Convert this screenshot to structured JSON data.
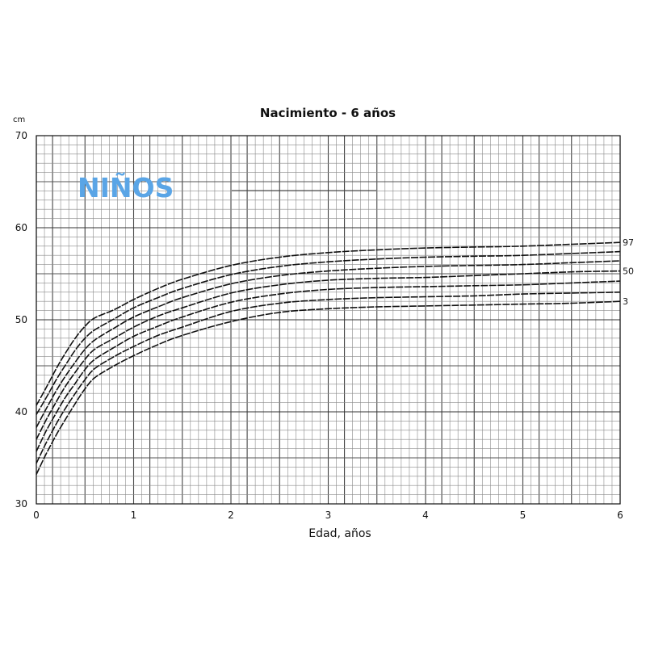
{
  "chart_data": {
    "type": "line",
    "title": "Nacimiento - 6 años",
    "subtitle": "NIÑOS",
    "xlabel": "Edad, años",
    "ylabel": "cm",
    "xlim": [
      0,
      6
    ],
    "ylim": [
      30,
      70
    ],
    "x_ticks": [
      "0",
      "1",
      "2",
      "3",
      "4",
      "5",
      "6"
    ],
    "y_ticks": [
      "30",
      "40",
      "50",
      "60",
      "70"
    ],
    "grid": true,
    "colors": {
      "accent": "#5aa5e6",
      "line": "#111111",
      "grid": "#777777"
    },
    "x": [
      0,
      0.1,
      0.2,
      0.3,
      0.4,
      0.5,
      0.6,
      0.8,
      1,
      1.25,
      1.5,
      2,
      2.5,
      3,
      3.5,
      4,
      4.5,
      5,
      5.5,
      6
    ],
    "series": [
      {
        "name": "97",
        "values": [
          40.7,
          42.6,
          44.6,
          46.4,
          48,
          49.3,
          50.2,
          51.1,
          52.2,
          53.4,
          54.4,
          55.9,
          56.8,
          57.3,
          57.6,
          57.8,
          57.9,
          58,
          58.2,
          58.4
        ]
      },
      {
        "name": "",
        "values": [
          39.7,
          41.5,
          43.4,
          45.1,
          46.7,
          48,
          48.9,
          50.1,
          51.3,
          52.4,
          53.4,
          54.9,
          55.8,
          56.3,
          56.6,
          56.8,
          56.9,
          57,
          57.2,
          57.4
        ]
      },
      {
        "name": "",
        "values": [
          38.3,
          40.3,
          42.2,
          43.9,
          45.4,
          46.8,
          47.8,
          49.1,
          50.3,
          51.4,
          52.4,
          53.9,
          54.8,
          55.3,
          55.6,
          55.8,
          55.9,
          56,
          56.2,
          56.4
        ]
      },
      {
        "name": "50",
        "values": [
          37,
          39.1,
          41,
          42.8,
          44.3,
          45.7,
          46.8,
          48,
          49.2,
          50.4,
          51.3,
          52.9,
          53.8,
          54.3,
          54.5,
          54.6,
          54.8,
          55,
          55.2,
          55.3
        ]
      },
      {
        "name": "",
        "values": [
          35.7,
          37.9,
          39.8,
          41.6,
          43.1,
          44.6,
          45.7,
          47,
          48.2,
          49.3,
          50.3,
          51.9,
          52.8,
          53.3,
          53.5,
          53.6,
          53.7,
          53.8,
          54,
          54.2
        ]
      },
      {
        "name": "",
        "values": [
          34.4,
          36.6,
          38.6,
          40.4,
          42,
          43.5,
          44.7,
          46,
          47.1,
          48.3,
          49.2,
          50.9,
          51.8,
          52.2,
          52.4,
          52.5,
          52.6,
          52.8,
          52.9,
          53
        ]
      },
      {
        "name": "3",
        "values": [
          33.2,
          35.4,
          37.4,
          39.2,
          40.9,
          42.5,
          43.7,
          45,
          46.1,
          47.3,
          48.3,
          49.8,
          50.8,
          51.2,
          51.4,
          51.5,
          51.6,
          51.7,
          51.8,
          52
        ]
      }
    ]
  }
}
